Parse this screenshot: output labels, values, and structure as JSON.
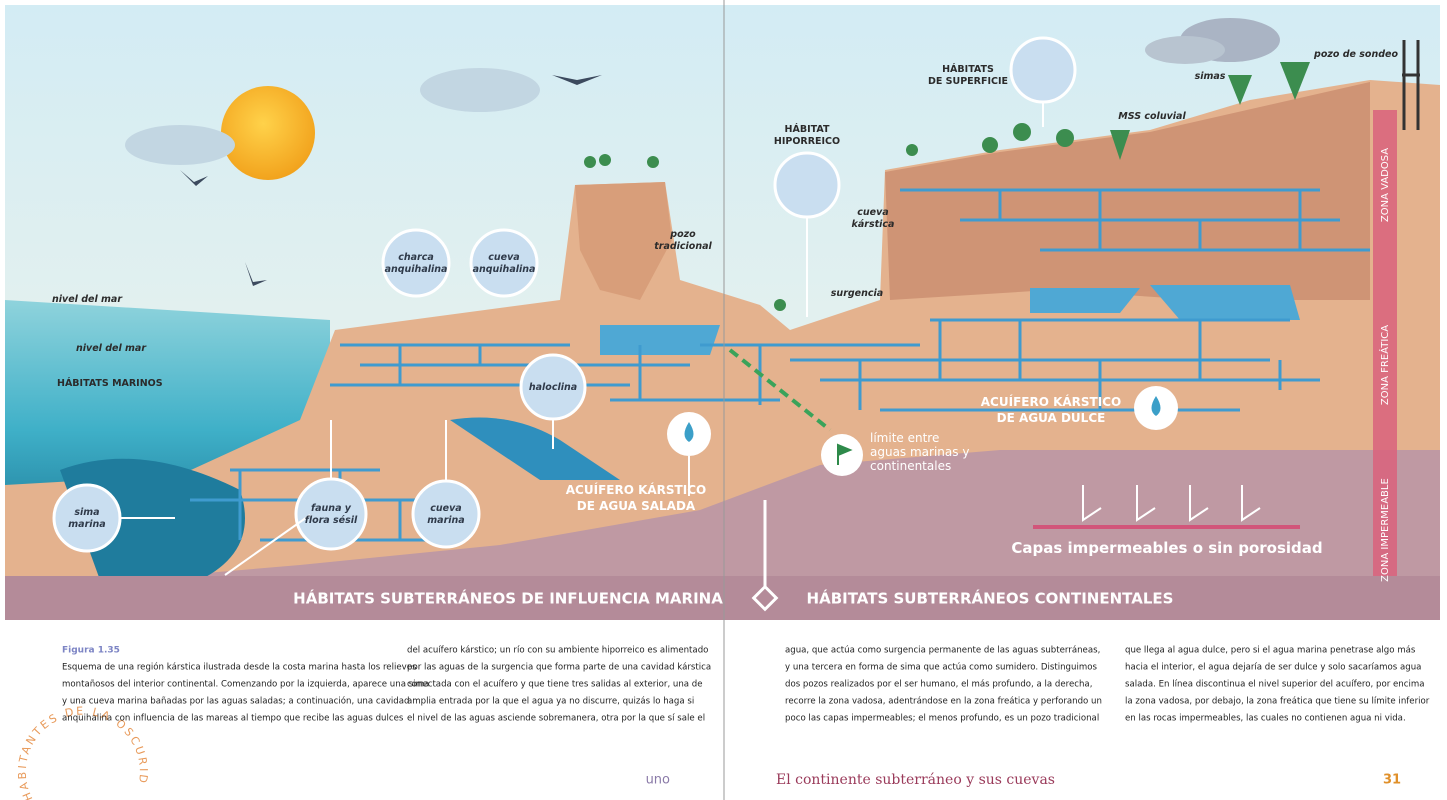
{
  "illustration": {
    "labels": [
      {
        "lines": [
          "nivel del mar"
        ]
      },
      {
        "lines": [
          "nivel del mar"
        ]
      },
      {
        "lines": [
          "HÁBITATS MARINOS"
        ]
      },
      {
        "lines": [
          "charca",
          "anquihalina"
        ]
      },
      {
        "lines": [
          "cueva",
          "anquihalina"
        ]
      },
      {
        "lines": [
          "pozo",
          "tradicional"
        ]
      },
      {
        "lines": [
          "haloclina"
        ]
      },
      {
        "lines": [
          "sima",
          "marina"
        ]
      },
      {
        "lines": [
          "fauna y",
          "flora sésil"
        ]
      },
      {
        "lines": [
          "cueva",
          "marina"
        ]
      },
      {
        "lines": [
          "ACUÍFERO KÁRSTICO",
          "DE AGUA SALADA"
        ]
      },
      {
        "lines": [
          "límite entre",
          "aguas marinas y",
          "continentales"
        ]
      },
      {
        "lines": [
          "HÁBITAT",
          "HIPORREICO"
        ]
      },
      {
        "lines": [
          "HÁBITATS",
          "DE SUPERFICIE"
        ]
      },
      {
        "lines": [
          "cueva",
          "kárstica"
        ]
      },
      {
        "lines": [
          "surgencia"
        ]
      },
      {
        "lines": [
          "MSS coluvial"
        ]
      },
      {
        "lines": [
          "simas"
        ]
      },
      {
        "lines": [
          "pozo de sondeo"
        ]
      },
      {
        "lines": [
          "ACUÍFERO KÁRSTICO",
          "DE AGUA DULCE"
        ]
      },
      {
        "lines": [
          "Capas impermeables o sin porosidad"
        ]
      },
      {
        "lines": [
          "ZONA VADOSA"
        ]
      },
      {
        "lines": [
          "ZONA FREÁTICA"
        ]
      },
      {
        "lines": [
          "ZONA IMPERMEABLE"
        ]
      }
    ],
    "section_titles": [
      "HÁBITATS SUBTERRÁNEOS DE INFLUENCIA MARINA",
      "HÁBITATS SUBTERRÁNEOS CONTINENTALES"
    ]
  },
  "caption": {
    "figure": "Figura 1.35",
    "columns": [
      [
        "Esquema de una región kárstica ilustrada desde la costa marina hasta los relieves",
        "montañosos del interior continental. Comenzando por la izquierda, aparece una sima",
        "y una cueva marina bañadas por las aguas saladas; a continuación, una cavidad",
        "anquihalina con influencia de las mareas al tiempo que recibe las aguas dulces"
      ],
      [
        "del acuífero kárstico; un río con su ambiente hiporreico es alimentado",
        "por las aguas de la surgencia que forma parte de una cavidad kárstica",
        "conectada con el acuífero y que tiene tres salidas al exterior, una de",
        "amplia entrada por la que el agua ya no discurre, quizás lo haga si",
        "el nivel de las aguas asciende sobremanera, otra por la que sí sale el"
      ],
      [
        "agua, que actúa como surgencia permanente de las aguas subterráneas,",
        "y una tercera en forma de sima que actúa como sumidero. Distinguimos",
        "dos pozos realizados por el ser humano, el más profundo, a la derecha,",
        "recorre la zona vadosa, adentrándose en la zona freática y perforando un",
        "poco las capas impermeables; el menos profundo, es un pozo tradicional"
      ],
      [
        "que llega al agua dulce, pero si el agua marina penetrase algo más",
        "hacia el interior, el agua dejaría de ser dulce y solo sacaríamos agua",
        "salada. En línea discontinua el nivel superior del acuífero, por encima",
        "la zona vadosa, por debajo, la zona freática que tiene su límite inferior",
        "en las rocas impermeables, las cuales no contienen agua ni vida."
      ]
    ]
  },
  "stamp": "HABITANTES DE LA OSCURIDAD",
  "footer": {
    "left": "uno",
    "title": "El continente subterráneo y sus cuevas",
    "page": "31"
  }
}
